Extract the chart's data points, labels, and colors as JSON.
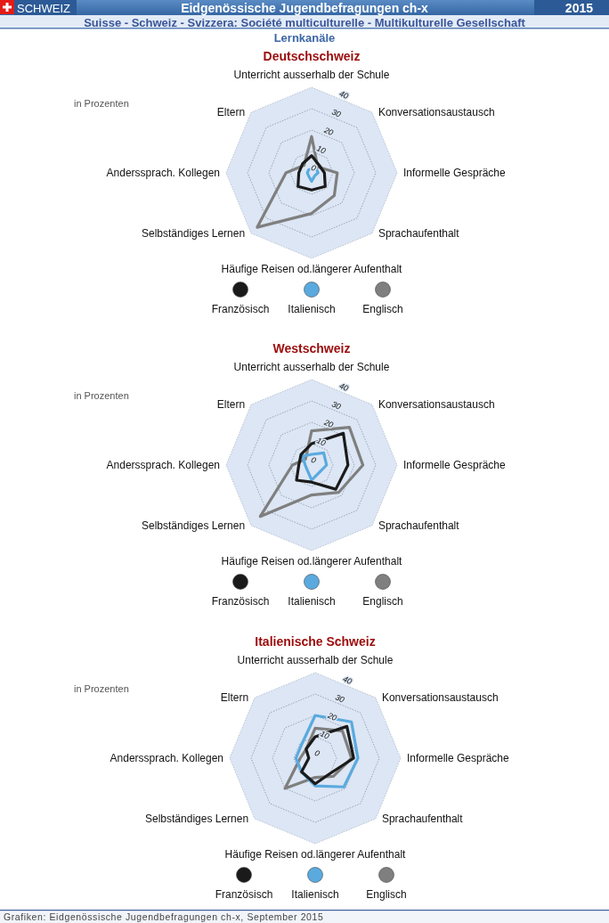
{
  "chart_data": [
    {
      "type": "radar",
      "title": "Deutschschweiz",
      "ylabel": "in Prozenten",
      "categories": [
        "Unterricht ausserhalb der Schule",
        "Konversationsaustausch",
        "Informelle Gespräche",
        "Sprachaufenthalt",
        "Häufige Reisen od.längerer Aufenthalt",
        "Selbständiges Lernen",
        "Anderssprach. Kollegen",
        "Eltern"
      ],
      "ylim": [
        0,
        40
      ],
      "yticks": [
        0,
        10,
        20,
        30,
        40
      ],
      "grid": true,
      "legend": "bottom",
      "series": [
        {
          "name": "Französisch",
          "color": "#1a1a1a",
          "values": [
            8,
            5,
            6,
            9,
            8,
            9,
            6,
            6
          ]
        },
        {
          "name": "Italienisch",
          "color": "#5aaadf",
          "values": [
            2,
            3,
            3,
            2,
            4,
            2,
            2,
            2
          ]
        },
        {
          "name": "Englisch",
          "color": "#7f7f7f",
          "values": [
            17,
            4,
            12,
            15,
            19,
            36,
            12,
            5
          ]
        }
      ],
      "annotations": [
        "SCHWEIZ",
        "Eidgenössische Jugendbefragungen ch-x",
        "2015",
        "Suisse - Schweiz - Svizzera: Société multiculturelle - Multikulturelle Gesellschaft",
        "Lernkanäle"
      ]
    },
    {
      "type": "radar",
      "title": "Westschweiz",
      "ylabel": "in Prozenten",
      "categories": [
        "Unterricht ausserhalb der Schule",
        "Konversationsaustausch",
        "Informelle Gespräche",
        "Sprachaufenthalt",
        "Häufige Reisen od.längerer Aufenthalt",
        "Selbständiges Lernen",
        "Anderssprach. Kollegen",
        "Eltern"
      ],
      "ylim": [
        0,
        40
      ],
      "yticks": [
        0,
        10,
        20,
        30,
        40
      ],
      "grid": true,
      "legend": "bottom",
      "series": [
        {
          "name": "Französisch",
          "color": "#1a1a1a",
          "values": [
            10,
            21,
            17,
            16,
            8,
            10,
            6,
            7
          ]
        },
        {
          "name": "Italienisch",
          "color": "#5aaadf",
          "values": [
            5,
            8,
            7,
            5,
            7,
            3,
            3,
            6
          ]
        },
        {
          "name": "Englisch",
          "color": "#7f7f7f",
          "values": [
            16,
            25,
            24,
            18,
            14,
            34,
            9,
            4
          ]
        }
      ]
    },
    {
      "type": "radar",
      "title": "Italienische Schweiz",
      "ylabel": "in Prozenten",
      "categories": [
        "Unterricht ausserhalb der Schule",
        "Konversationsaustausch",
        "Informelle Gespräche",
        "Sprachaufenthalt",
        "Häufige Reisen od.längerer Aufenthalt",
        "Selbständiges Lernen",
        "Anderssprach. Kollegen",
        "Eltern"
      ],
      "ylim": [
        0,
        40
      ],
      "yticks": [
        0,
        10,
        20,
        30,
        40
      ],
      "grid": true,
      "legend": "bottom",
      "series": [
        {
          "name": "Französisch",
          "color": "#1a1a1a",
          "values": [
            10,
            21,
            18,
            10,
            12,
            9,
            3,
            6
          ]
        },
        {
          "name": "Italienisch",
          "color": "#5aaadf",
          "values": [
            20,
            24,
            20,
            19,
            13,
            9,
            9,
            9
          ]
        },
        {
          "name": "Englisch",
          "color": "#7f7f7f",
          "values": [
            14,
            18,
            17,
            12,
            9,
            20,
            7,
            6
          ]
        }
      ],
      "annotations": [
        "Grafiken: Eidgenössische Jugendbefragungen ch-x, September 2015"
      ]
    }
  ]
}
